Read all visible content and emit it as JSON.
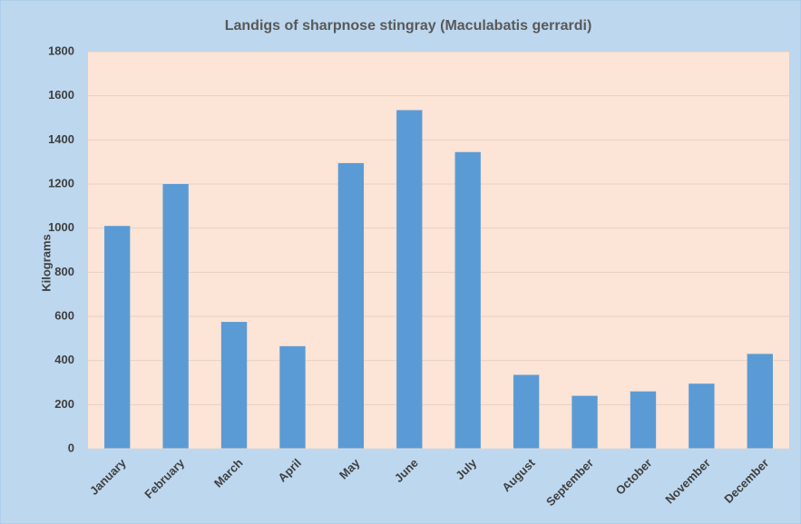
{
  "chart_data": {
    "type": "bar",
    "title": "Landigs of sharpnose stingray (Maculabatis gerrardi)",
    "y_label": "Kilograms",
    "categories": [
      "January",
      "February",
      "March",
      "April",
      "May",
      "June",
      "July",
      "August",
      "September",
      "October",
      "November",
      "December"
    ],
    "values": [
      1010,
      1200,
      575,
      465,
      1295,
      1535,
      1345,
      335,
      240,
      260,
      295,
      430
    ],
    "color": "#5b9bd5",
    "ylim": [
      0,
      1800
    ],
    "yticks": [
      0,
      200,
      400,
      600,
      800,
      1000,
      1200,
      1400,
      1600,
      1800
    ],
    "grid": true
  }
}
